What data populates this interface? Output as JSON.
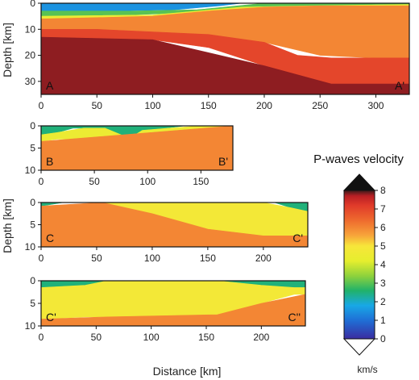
{
  "chart_data": {
    "type": "heatmap",
    "x_axis_label": "Distance [km]",
    "y_axis_label": "Depth [km]",
    "panels": [
      {
        "id": "A",
        "left_label": "A",
        "right_label": "A'",
        "xlim": [
          0,
          330
        ],
        "ylim": [
          0,
          35
        ],
        "xticks": [
          0,
          50,
          100,
          150,
          200,
          250,
          300
        ],
        "yticks": [
          0,
          10,
          20,
          30
        ],
        "layers": [
          {
            "v": 1.5,
            "x": [
              0,
              60,
              120,
              160,
              180
            ],
            "top": [
              0,
              0,
              0,
              0,
              0
            ],
            "bottom": [
              3,
              3,
              2.5,
              1,
              0
            ]
          },
          {
            "v": 3.0,
            "x": [
              0,
              80,
              140,
              200,
              300,
              330
            ],
            "top": [
              3,
              3,
              2.5,
              0,
              0,
              0
            ],
            "bottom": [
              5,
              4.5,
              3.5,
              1.5,
              0.5,
              0.5
            ]
          },
          {
            "v": 4.5,
            "x": [
              0,
              100,
              180,
              240,
              330
            ],
            "top": [
              5,
              4.5,
              1.5,
              1,
              0.5
            ],
            "bottom": [
              6,
              5.5,
              3,
              1.5,
              1
            ]
          },
          {
            "v": 6.0,
            "x": [
              0,
              50,
              100,
              150,
              200,
              250,
              300,
              330
            ],
            "top": [
              6,
              5.5,
              5,
              3,
              1.5,
              1,
              1,
              1
            ],
            "bottom": [
              10,
              10,
              11,
              12,
              15,
              20,
              21,
              21
            ]
          },
          {
            "v": 7.0,
            "x": [
              0,
              50,
              100,
              150,
              200,
              230,
              260,
              330
            ],
            "top": [
              10,
              10,
              11,
              12,
              15,
              20,
              21,
              21
            ],
            "bottom": [
              13,
              13.5,
              14,
              17,
              24,
              29,
              31,
              31
            ]
          },
          {
            "v": 7.8,
            "x": [
              0,
              100,
              200,
              260,
              330
            ],
            "top": [
              13,
              14,
              24,
              31,
              31
            ],
            "bottom": [
              35,
              35,
              35,
              35,
              35
            ]
          }
        ]
      },
      {
        "id": "B",
        "left_label": "B",
        "right_label": "B'",
        "xlim": [
          0,
          180
        ],
        "ylim": [
          0,
          10
        ],
        "xticks": [
          0,
          50,
          100,
          150
        ],
        "yticks": [
          0,
          5,
          10
        ],
        "layers": [
          {
            "v": 2.5,
            "x": [
              0,
              15,
              30,
              60,
              75,
              85,
              100,
              135
            ],
            "top": [
              0,
              0,
              0,
              0,
              0,
              0,
              0,
              0
            ],
            "bottom": [
              2,
              1.5,
              0.5,
              0.5,
              2,
              2.5,
              1,
              0
            ]
          },
          {
            "v": 4.5,
            "x": [
              0,
              15,
              40,
              60,
              75,
              85,
              95,
              120,
              150,
              180
            ],
            "top": [
              2,
              1.5,
              0.5,
              0.5,
              2,
              2.5,
              1,
              0.5,
              0,
              0
            ],
            "bottom": [
              3.5,
              3,
              3,
              4,
              5.5,
              5.5,
              3.5,
              2.5,
              1,
              0
            ]
          },
          {
            "v": 6.0,
            "x": [
              0,
              180
            ],
            "top": [
              3.5,
              0
            ],
            "bottom": [
              10,
              10
            ]
          }
        ]
      },
      {
        "id": "C",
        "left_label": "C",
        "right_label": "C'",
        "xlim": [
          0,
          240
        ],
        "ylim": [
          0,
          10
        ],
        "xticks": [
          0,
          50,
          100,
          150,
          200
        ],
        "yticks": [
          0,
          5,
          10
        ],
        "layers": [
          {
            "v": 2.5,
            "x": [
              0,
              20,
              210,
              225,
              240
            ],
            "top": [
              0,
              0,
              0,
              0,
              0
            ],
            "bottom": [
              0.8,
              0,
              0,
              1.2,
              2
            ]
          },
          {
            "v": 4.8,
            "x": [
              55,
              100,
              150,
              200,
              225,
              240
            ],
            "top": [
              0,
              0,
              0,
              0,
              1.2,
              2
            ],
            "bottom": [
              0,
              2.5,
              6,
              7.5,
              7.5,
              7.5
            ]
          },
          {
            "v": 6.0,
            "x": [
              0,
              55,
              100,
              150,
              200,
              240
            ],
            "top": [
              0.8,
              0,
              2.5,
              6,
              7.5,
              7.5
            ],
            "bottom": [
              10,
              10,
              10,
              10,
              10,
              10
            ]
          }
        ]
      },
      {
        "id": "C2",
        "left_label": "C'",
        "right_label": "C''",
        "xlim": [
          0,
          240
        ],
        "ylim": [
          0,
          10
        ],
        "xticks": [
          0,
          50,
          100,
          150,
          200
        ],
        "yticks": [
          0,
          5,
          10
        ],
        "layers": [
          {
            "v": 2.5,
            "x": [
              0,
              40,
              60,
              160,
              180,
              200,
              230,
              240
            ],
            "top": [
              0,
              0,
              0,
              0,
              0,
              0,
              0,
              0
            ],
            "bottom": [
              1.5,
              1,
              0,
              0,
              0.5,
              1,
              1.5,
              1.5
            ]
          },
          {
            "v": 4.8,
            "x": [
              0,
              40,
              60,
              160,
              180,
              200,
              230,
              240
            ],
            "top": [
              1.5,
              1,
              0,
              0,
              0.5,
              1,
              1.5,
              1.5
            ],
            "bottom": [
              8.5,
              8,
              8,
              7.5,
              6.5,
              5,
              3,
              3
            ]
          },
          {
            "v": 6.0,
            "x": [
              0,
              60,
              160,
              200,
              240
            ],
            "top": [
              8.5,
              8,
              7.5,
              5,
              3
            ],
            "bottom": [
              10,
              10,
              10,
              10,
              10
            ]
          }
        ]
      }
    ],
    "colorbar": {
      "title": "P-waves velocity",
      "unit": "km/s",
      "min": 0,
      "max": 8,
      "ticks": [
        0,
        1,
        2,
        3,
        4,
        5,
        6,
        7,
        8
      ],
      "extend": "both",
      "stops": [
        {
          "v": 0,
          "color": "#3a2ca0"
        },
        {
          "v": 1,
          "color": "#1f6fd6"
        },
        {
          "v": 1.8,
          "color": "#18a8e6"
        },
        {
          "v": 2.6,
          "color": "#21b26a"
        },
        {
          "v": 3.4,
          "color": "#8fd23c"
        },
        {
          "v": 4.2,
          "color": "#e6ee2e"
        },
        {
          "v": 5.0,
          "color": "#f7e63a"
        },
        {
          "v": 5.6,
          "color": "#f7a23a"
        },
        {
          "v": 6.4,
          "color": "#ee6a2e"
        },
        {
          "v": 7.2,
          "color": "#e03a2a"
        },
        {
          "v": 7.7,
          "color": "#b81f24"
        },
        {
          "v": 8,
          "color": "#3a1a1a"
        }
      ]
    }
  }
}
